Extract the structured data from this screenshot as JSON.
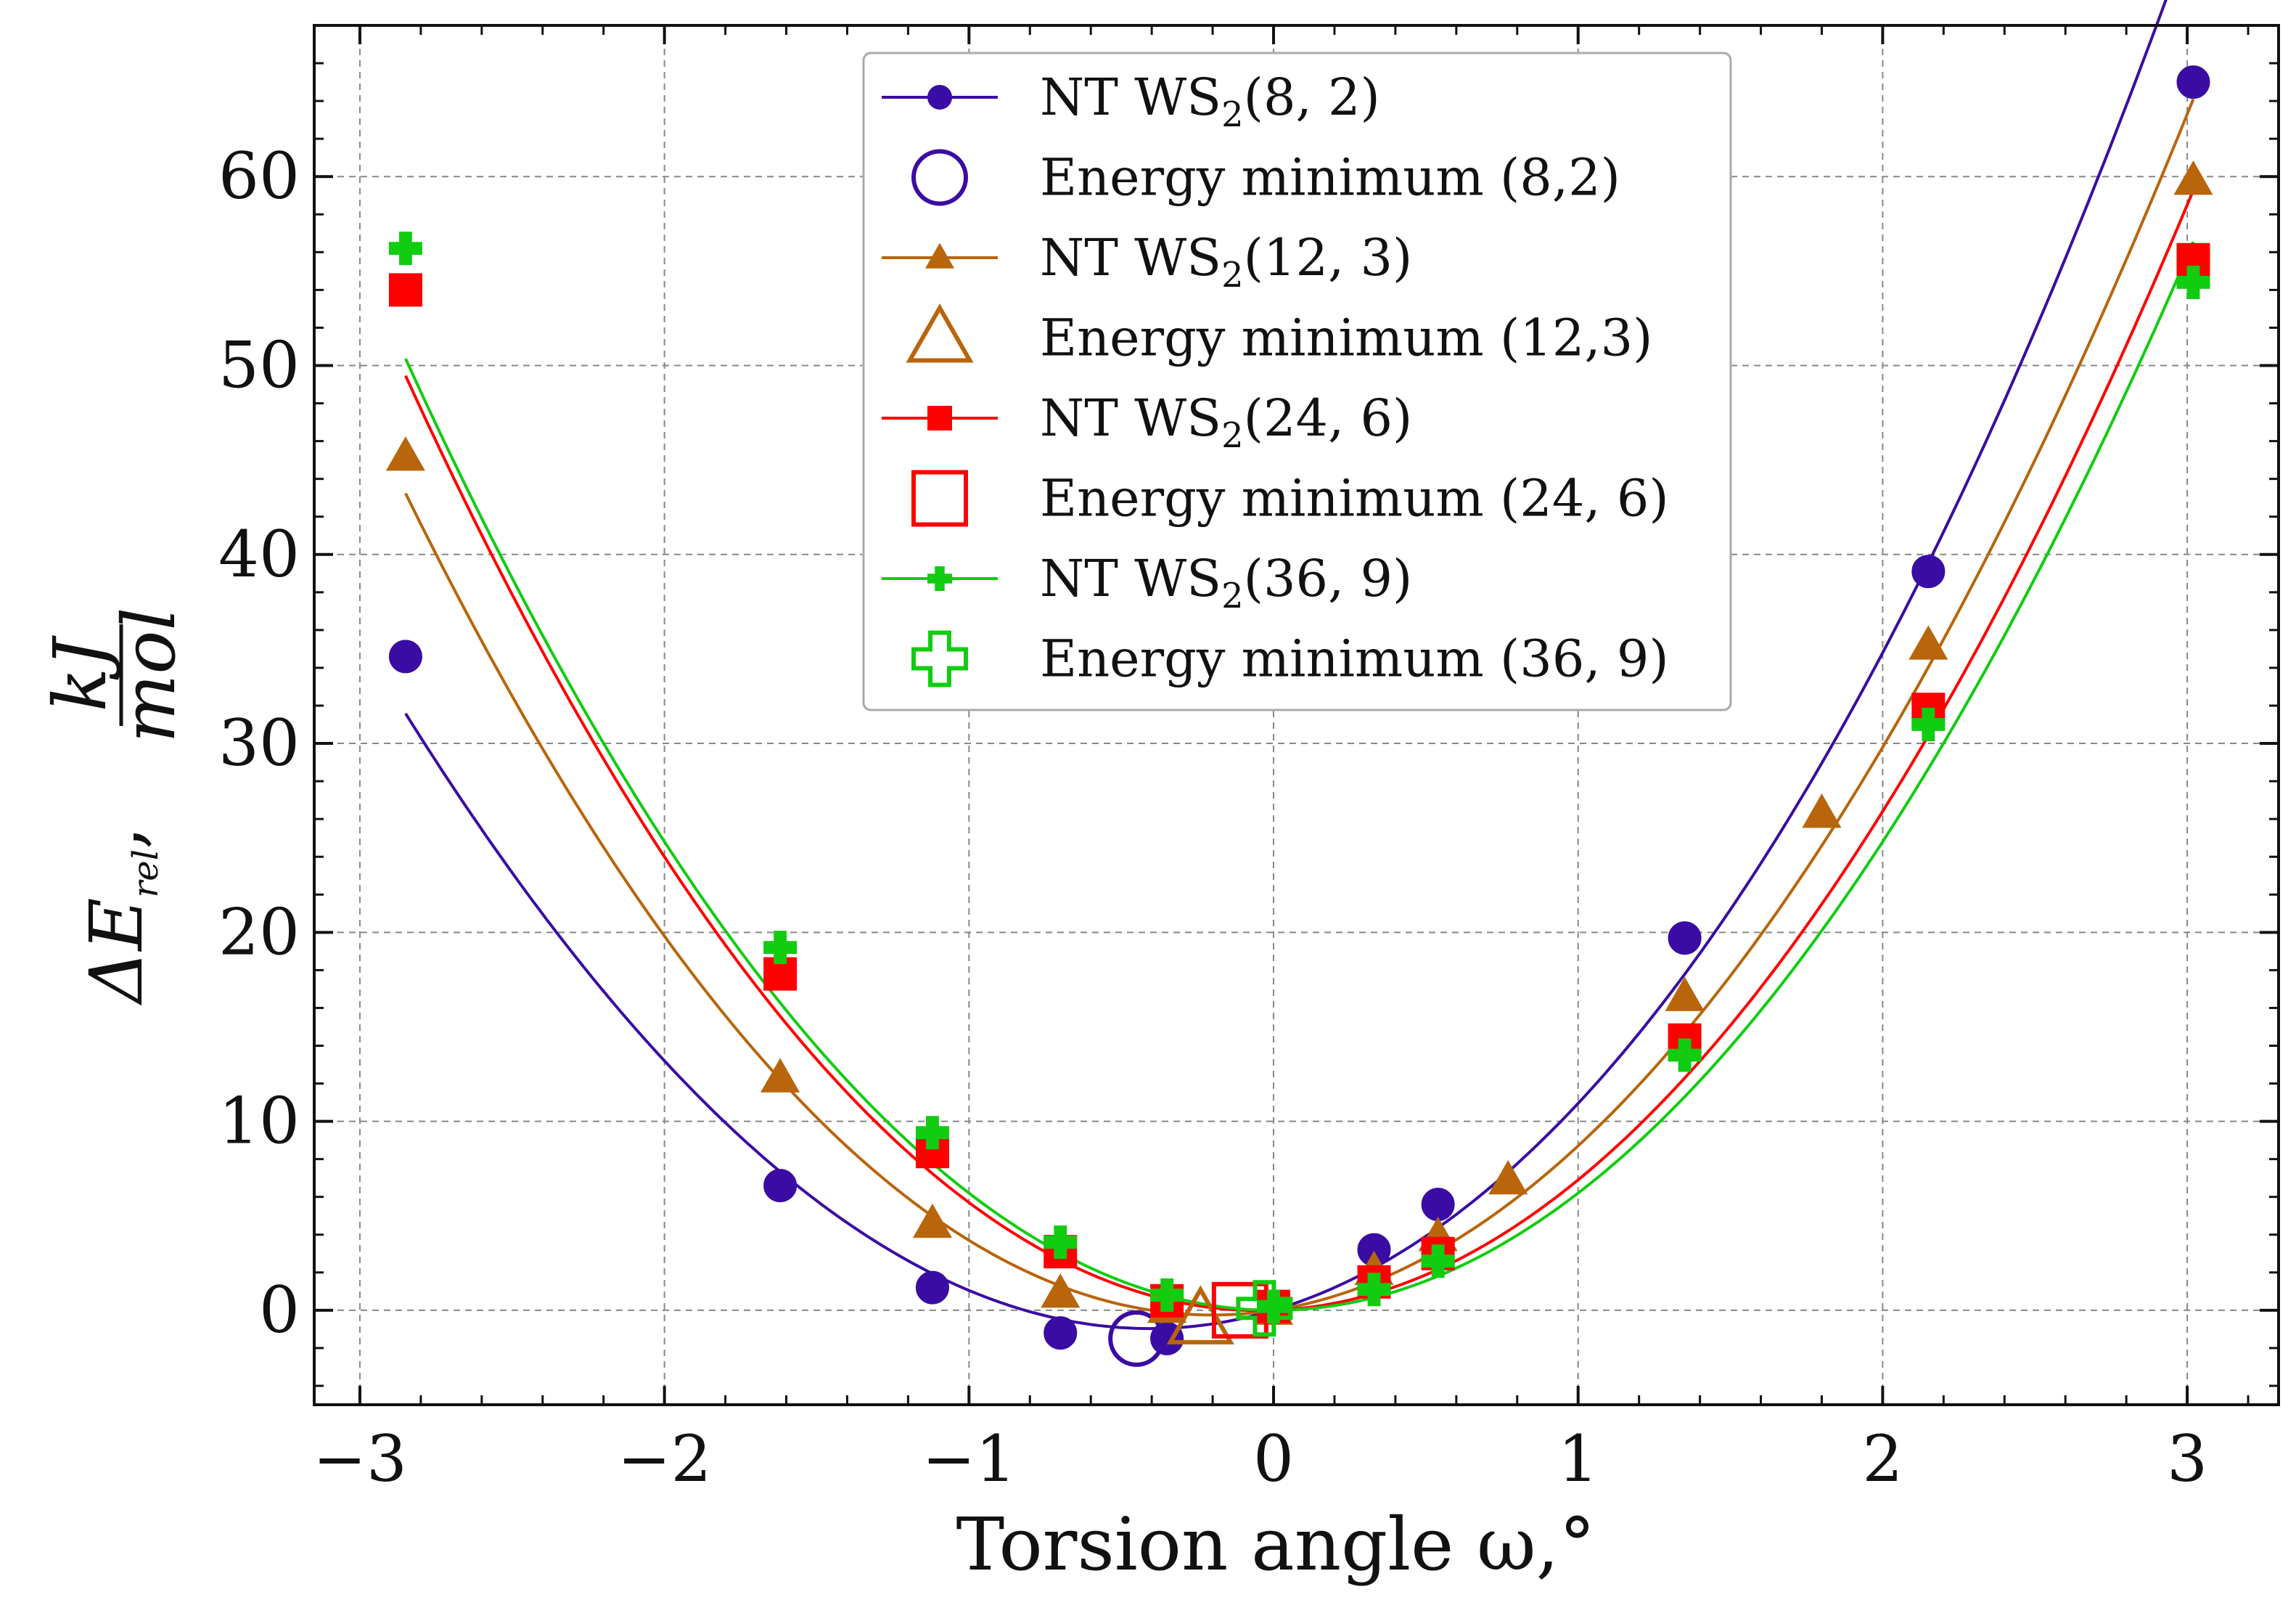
{
  "chart_data": {
    "type": "line",
    "xlabel": "Torsion angle ω,°",
    "ylabel": {
      "prefix": "ΔE",
      "sub": "rel",
      "sep": ",",
      "num": "kJ",
      "den": "mol"
    },
    "xlim": [
      -3.15,
      3.3
    ],
    "ylim": [
      -5,
      68
    ],
    "xticks": [
      -3,
      -2,
      -1,
      0,
      1,
      2,
      3
    ],
    "xtick_labels": [
      "−3",
      "−2",
      "−1",
      "0",
      "1",
      "2",
      "3"
    ],
    "yticks": [
      0,
      10,
      20,
      30,
      40,
      50,
      60
    ],
    "ytick_labels": [
      "0",
      "10",
      "20",
      "30",
      "40",
      "50",
      "60"
    ],
    "grid": true,
    "legend_position": "top-center",
    "series": [
      {
        "name": "NT WS2(8, 2)",
        "label_main": "NT WS",
        "label_sub": "2",
        "label_tail": "(8, 2)",
        "color": "#3a0ca3",
        "marker": "circle",
        "x": [
          -2.85,
          -1.62,
          -1.12,
          -0.7,
          -0.35,
          0,
          0.33,
          0.54,
          1.35,
          2.15,
          3.02
        ],
        "y": [
          34.6,
          6.6,
          1.2,
          -1.2,
          -1.5,
          0.1,
          3.2,
          5.6,
          19.7,
          39.1,
          65.0
        ],
        "curve_coef": [
          0,
          4.8,
          6.0,
          0.15
        ],
        "min_label": "Energy minimum (8,2)",
        "min_x": -0.45,
        "min_y": -1.5,
        "min_marker": "circle"
      },
      {
        "name": "NT WS2(12, 3)",
        "label_main": "NT WS",
        "label_sub": "2",
        "label_tail": "(12, 3)",
        "color": "#b8650b",
        "marker": "triangle",
        "x": [
          -2.85,
          -1.62,
          -1.12,
          -0.7,
          -0.35,
          0,
          0.33,
          0.54,
          0.77,
          1.35,
          1.8,
          2.15,
          3.02
        ],
        "y": [
          45.2,
          12.3,
          4.6,
          0.9,
          0.1,
          0.0,
          2.1,
          3.9,
          6.9,
          16.6,
          26.3,
          35.2,
          59.8
        ],
        "curve_coef": [
          0,
          2.5,
          6.2,
          0
        ],
        "min_label": "Energy minimum (12,3)",
        "min_x": -0.24,
        "min_y": -0.5,
        "min_marker": "triangle"
      },
      {
        "name": "NT WS2(24, 6)",
        "label_main": "NT WS",
        "label_sub": "2",
        "label_tail": "(24, 6)",
        "color": "#ff0000",
        "marker": "square",
        "x": [
          -2.85,
          -1.62,
          -1.12,
          -0.7,
          -0.35,
          0,
          0.33,
          0.54,
          1.35,
          2.15,
          3.02
        ],
        "y": [
          54.0,
          17.8,
          8.4,
          3.1,
          0.5,
          0.2,
          1.5,
          3.0,
          14.3,
          31.8,
          55.6
        ],
        "curve_coef": [
          0,
          0.6,
          6.3,
          0
        ],
        "min_label": "Energy minimum (24, 6)",
        "min_x": -0.11,
        "min_y": 0.0,
        "min_marker": "square"
      },
      {
        "name": "NT WS2(36, 9)",
        "label_main": "NT WS",
        "label_sub": "2",
        "label_tail": "(36, 9)",
        "color": "#11cc11",
        "marker": "plus",
        "x": [
          -2.85,
          -1.62,
          -1.12,
          -0.7,
          -0.35,
          0,
          0.33,
          0.54,
          1.35,
          2.15,
          3.02
        ],
        "y": [
          56.2,
          19.2,
          9.4,
          3.6,
          0.8,
          0.2,
          1.1,
          2.6,
          13.5,
          31.0,
          54.4
        ],
        "curve_coef": [
          0,
          0.0,
          6.2,
          0
        ],
        "min_label": "Energy minimum (36, 9)",
        "min_x": -0.03,
        "min_y": 0.1,
        "min_marker": "plus"
      }
    ]
  }
}
